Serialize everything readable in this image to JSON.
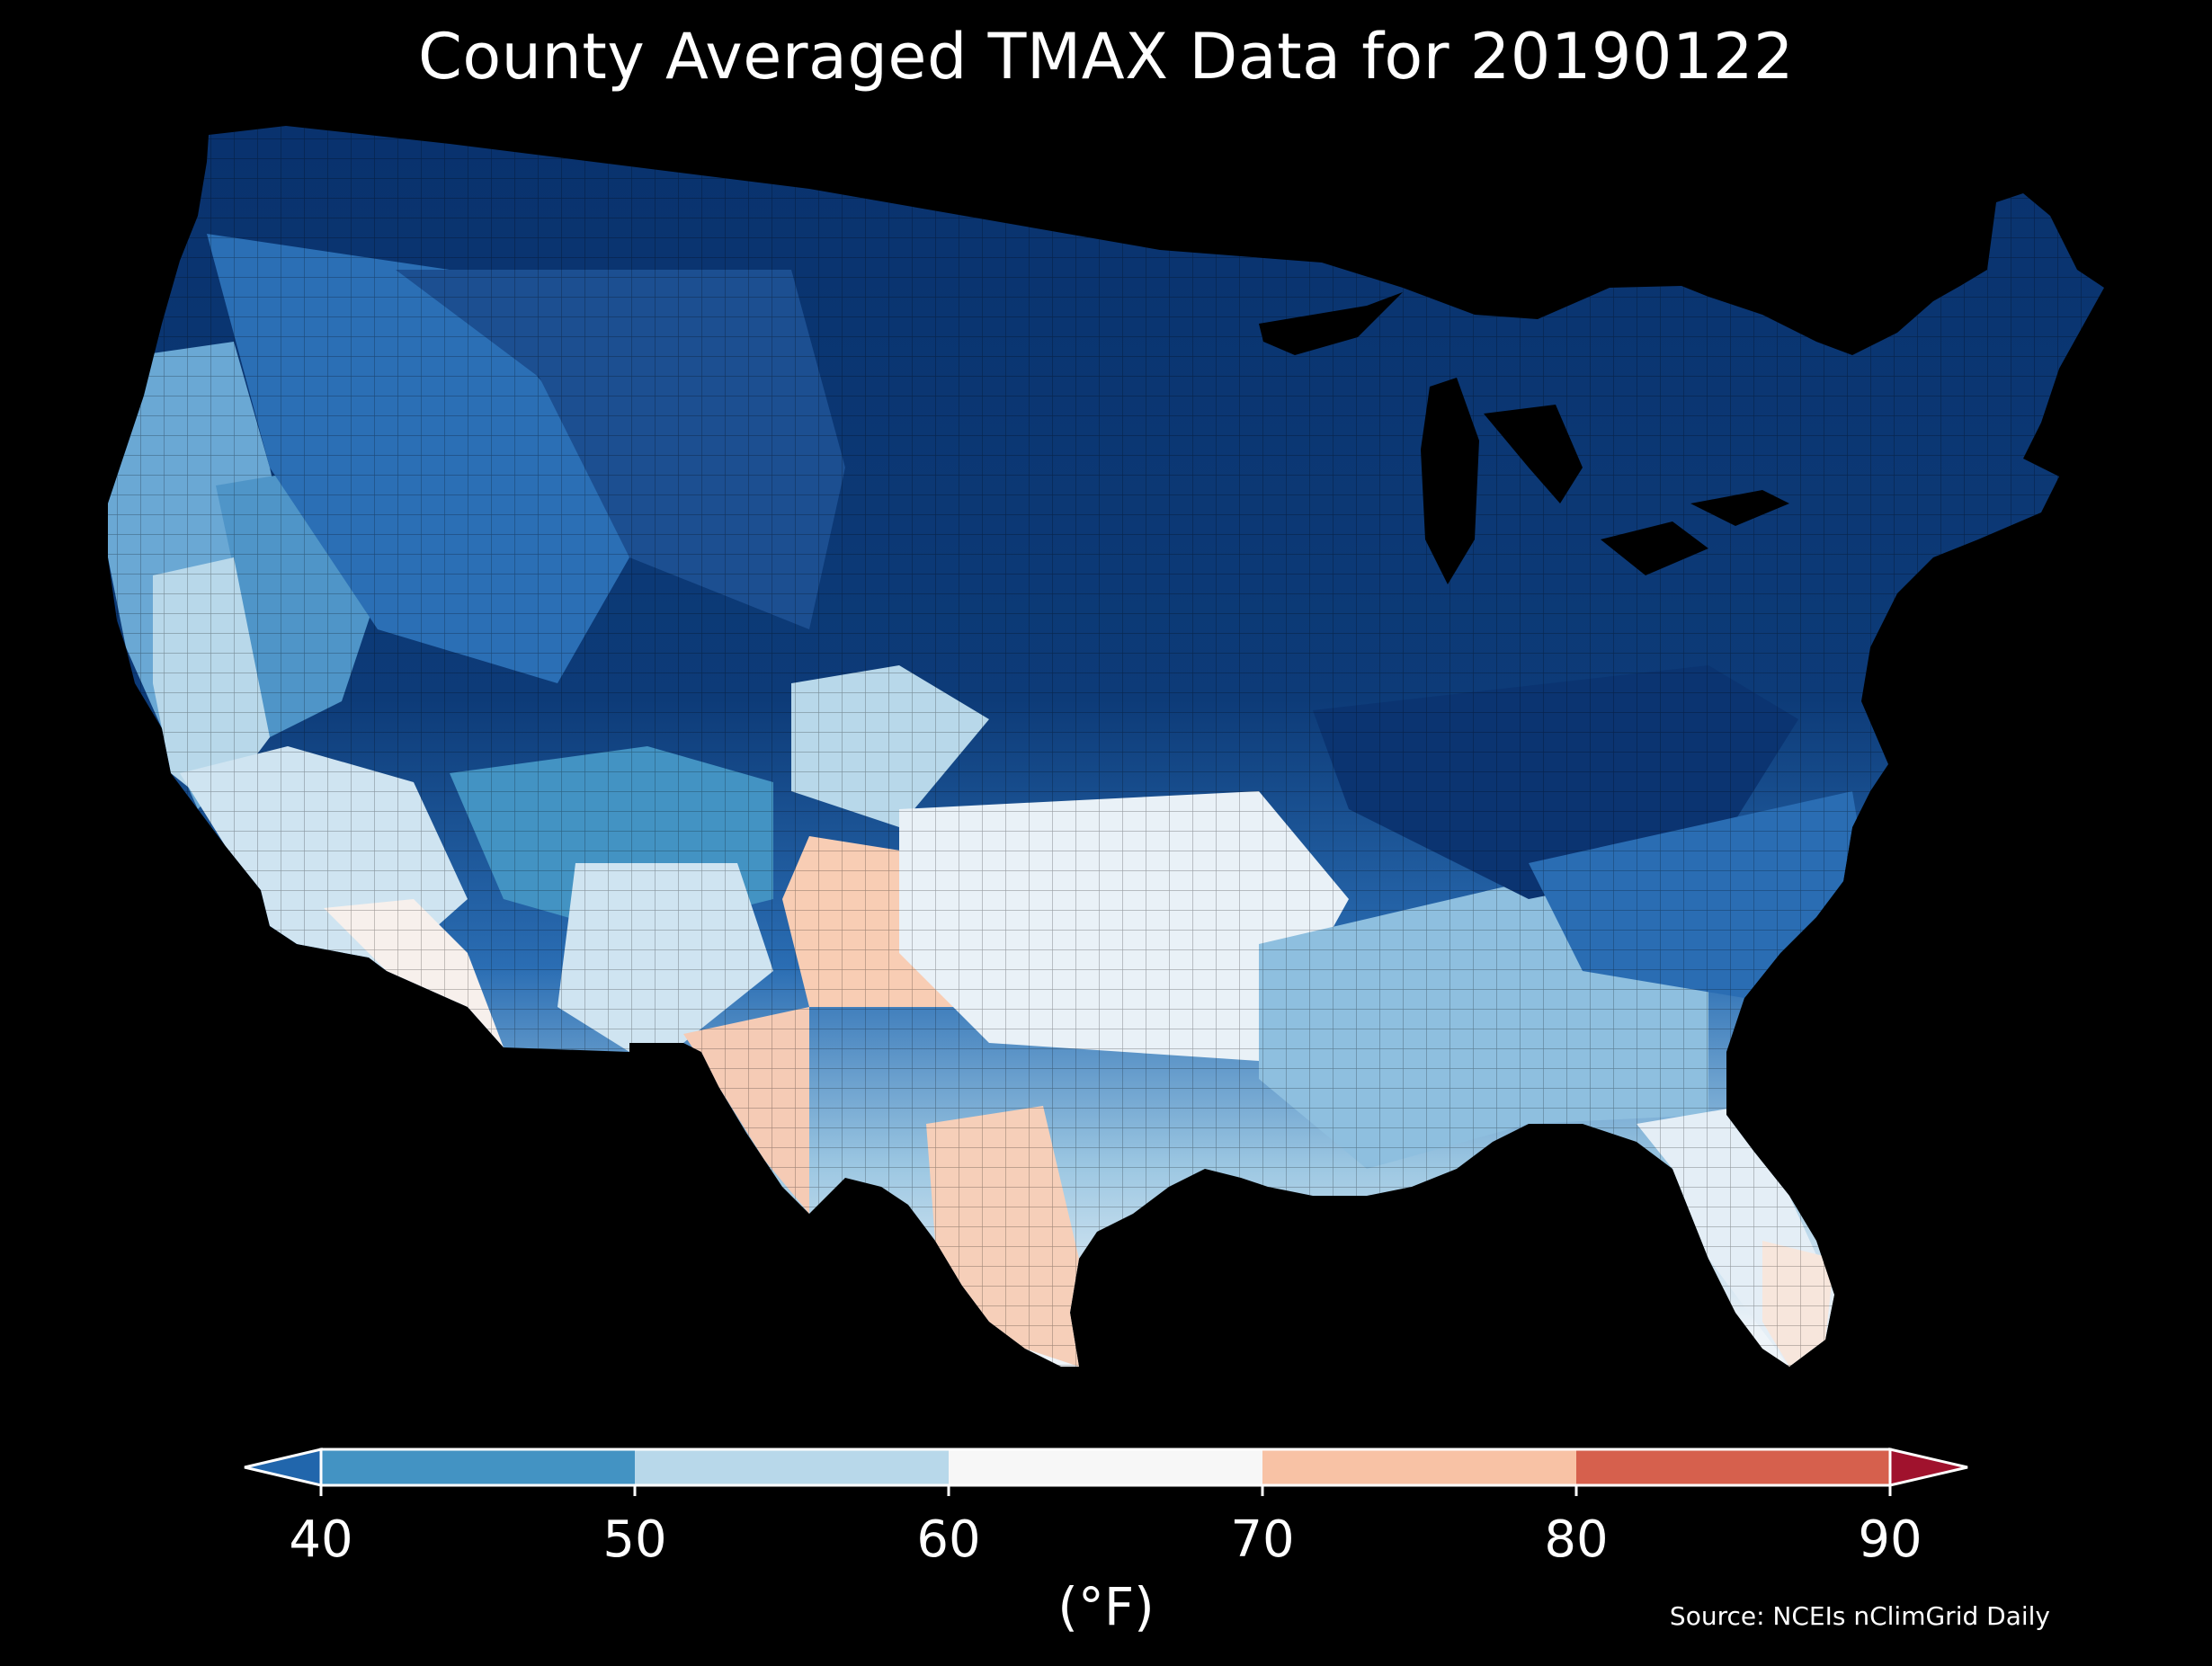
{
  "title": "County Averaged TMAX Data for 20190122",
  "map": {
    "region": "Contiguous United States (counties)",
    "variable": "TMAX",
    "background_color": "#000000",
    "border_color": "#000000"
  },
  "colorbar": {
    "label": "(°F)",
    "ticks": [
      "40",
      "50",
      "60",
      "70",
      "80",
      "90"
    ],
    "bins": [
      {
        "range": "<40",
        "color": "#2166ac"
      },
      {
        "range": "40-50",
        "color": "#4393c3"
      },
      {
        "range": "50-60",
        "color": "#b8d8ea"
      },
      {
        "range": "60-70",
        "color": "#f7f7f7"
      },
      {
        "range": "70-80",
        "color": "#f8c2a5"
      },
      {
        "range": "80-90",
        "color": "#d6604d"
      },
      {
        "range": ">90",
        "color": "#a0122d"
      }
    ]
  },
  "source": "Source: NCEIs nClimGrid Daily"
}
